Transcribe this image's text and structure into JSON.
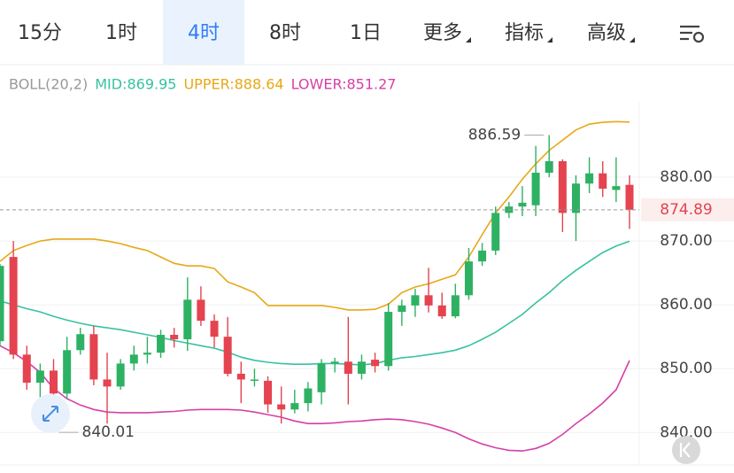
{
  "tabs": [
    {
      "label": "15分"
    },
    {
      "label": "1时"
    },
    {
      "label": "4时"
    },
    {
      "label": "8时"
    },
    {
      "label": "1日"
    },
    {
      "label": "更多",
      "dropdown": true
    },
    {
      "label": "指标",
      "dropdown": true
    },
    {
      "label": "高级",
      "dropdown": true
    }
  ],
  "selected_tab": 2,
  "chart_data": {
    "type": "candlestick",
    "indicator": "BOLL(20,2)",
    "up_color": "#2eb163",
    "down_color": "#e4434f",
    "open": [
      854.3,
      867.5,
      852.2,
      847.8,
      849.7,
      846.1,
      852.9,
      855.4,
      848.3,
      847.2,
      850.8,
      852.2,
      852.5,
      855.3,
      854.6,
      860.8,
      857.5,
      855.0,
      849.2,
      848.1,
      848.1,
      844.4,
      843.6,
      844.6,
      846.3,
      850.8,
      851.1,
      849.2,
      851.4,
      850.4,
      858.9,
      859.9,
      861.5,
      859.9,
      858.2,
      861.5,
      866.8,
      868.5,
      874.4,
      875.4,
      875.6,
      880.7,
      882.5,
      874.4,
      879.0,
      880.6,
      878.0,
      878.8
    ],
    "high": [
      866.4,
      870.0,
      853.6,
      850.8,
      851.5,
      855.0,
      856.4,
      856.7,
      852.5,
      851.5,
      853.6,
      855.0,
      856.1,
      856.4,
      864.3,
      862.9,
      858.5,
      858.1,
      851.1,
      850.0,
      848.8,
      847.2,
      846.7,
      847.9,
      851.5,
      851.7,
      858.1,
      852.2,
      852.5,
      860.3,
      860.8,
      862.5,
      865.8,
      861.9,
      863.3,
      868.9,
      869.7,
      875.4,
      876.1,
      878.6,
      884.9,
      886.59,
      882.8,
      880.3,
      883.1,
      882.5,
      883.1,
      880.3
    ],
    "low": [
      853.5,
      851.5,
      846.7,
      844.6,
      840.01,
      845.3,
      852.2,
      847.4,
      841.4,
      846.7,
      849.7,
      850.8,
      851.7,
      853.3,
      852.8,
      856.7,
      853.3,
      848.8,
      844.6,
      847.2,
      843.1,
      841.4,
      843.0,
      843.3,
      844.4,
      849.4,
      844.4,
      848.3,
      849.4,
      849.7,
      856.7,
      858.1,
      858.8,
      857.8,
      857.9,
      860.8,
      866.1,
      867.8,
      873.6,
      873.9,
      873.9,
      880.0,
      871.4,
      870.0,
      877.5,
      876.9,
      876.1,
      871.9
    ],
    "close": [
      866.1,
      852.2,
      847.8,
      849.7,
      846.1,
      852.9,
      855.4,
      848.3,
      847.2,
      850.8,
      852.2,
      852.5,
      855.3,
      854.6,
      860.8,
      857.5,
      855.0,
      849.2,
      848.3,
      848.3,
      844.4,
      843.6,
      844.6,
      846.9,
      850.8,
      851.1,
      849.2,
      851.1,
      850.4,
      858.9,
      859.9,
      861.5,
      859.9,
      858.2,
      861.5,
      866.8,
      868.5,
      874.4,
      875.4,
      876.0,
      880.7,
      882.5,
      874.4,
      879.0,
      880.6,
      878.2,
      878.6,
      874.89
    ],
    "series": [
      {
        "name": "MID:869.95",
        "color": "#36c2a0",
        "values": [
          860.6,
          860.0,
          859.4,
          858.9,
          858.2,
          857.6,
          857.1,
          856.7,
          856.4,
          856.1,
          855.7,
          855.3,
          854.9,
          854.4,
          854.0,
          853.6,
          853.2,
          852.6,
          851.8,
          851.3,
          851.0,
          850.8,
          850.7,
          850.7,
          850.8,
          850.8,
          850.7,
          850.6,
          850.8,
          851.3,
          851.7,
          851.9,
          852.2,
          852.5,
          852.9,
          853.6,
          854.6,
          855.7,
          857.1,
          858.5,
          860.3,
          861.9,
          863.8,
          865.4,
          866.8,
          868.2,
          869.2,
          869.95
        ]
      },
      {
        "name": "UPPER:888.64",
        "color": "#e6a817",
        "values": [
          866.8,
          868.5,
          869.3,
          870.0,
          870.3,
          870.3,
          870.3,
          870.3,
          870.0,
          869.6,
          869.0,
          868.5,
          867.5,
          866.5,
          866.1,
          866.1,
          865.7,
          863.6,
          862.8,
          861.9,
          859.9,
          859.9,
          859.9,
          859.9,
          859.9,
          859.6,
          859.2,
          859.2,
          859.3,
          860.1,
          861.9,
          862.8,
          863.3,
          864.0,
          864.7,
          867.5,
          871.0,
          874.4,
          876.9,
          879.7,
          882.1,
          884.2,
          885.8,
          887.4,
          888.3,
          888.6,
          888.7,
          888.64
        ]
      },
      {
        "name": "LOWER:851.27",
        "color": "#d63fa8",
        "values": [
          853.6,
          852.5,
          851.1,
          849.4,
          846.9,
          845.3,
          844.3,
          843.6,
          843.2,
          843.1,
          843.1,
          843.1,
          843.2,
          843.3,
          843.5,
          843.6,
          843.6,
          843.6,
          843.5,
          843.2,
          842.8,
          842.4,
          841.8,
          841.4,
          841.4,
          841.5,
          841.7,
          841.8,
          842.0,
          842.1,
          842.0,
          841.7,
          841.3,
          840.7,
          840.0,
          839.0,
          838.2,
          837.6,
          837.2,
          837.1,
          837.5,
          838.3,
          839.7,
          841.4,
          842.9,
          844.6,
          846.7,
          851.27
        ]
      }
    ],
    "ylim": [
      834.9,
      891.8
    ],
    "yticks": [
      {
        "value": 840,
        "label": "840.00"
      },
      {
        "value": 850,
        "label": "850.00"
      },
      {
        "value": 860,
        "label": "860.00"
      },
      {
        "value": 870,
        "label": "870.00"
      },
      {
        "value": 880,
        "label": "880.00"
      }
    ],
    "grid": true
  }
}
